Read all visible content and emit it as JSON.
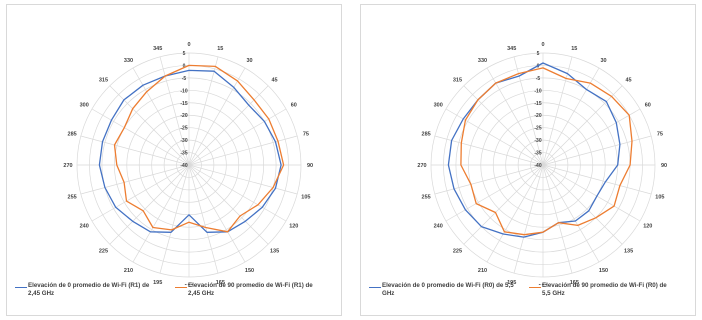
{
  "chart_data": [
    {
      "type": "polar-line",
      "r_ticks": [
        "5",
        "0",
        "-5",
        "-10",
        "-15",
        "-20",
        "-25",
        "-30",
        "-35",
        "-40"
      ],
      "r_range": [
        -40,
        5
      ],
      "angle_labels": [
        "0",
        "15",
        "30",
        "45",
        "60",
        "75",
        "90",
        "105",
        "120",
        "135",
        "150",
        "165",
        "180",
        "195",
        "210",
        "225",
        "240",
        "255",
        "270",
        "285",
        "300",
        "315",
        "330",
        "345"
      ],
      "angles": [
        0,
        15,
        30,
        45,
        60,
        75,
        90,
        105,
        120,
        135,
        150,
        165,
        180,
        195,
        210,
        225,
        240,
        255,
        270,
        285,
        300,
        315,
        330,
        345
      ],
      "grid": true,
      "legend_position": "bottom",
      "series": [
        {
          "name": "Elevación de 0 promedio de Wi-Fi (R1) de 2,45 GHz",
          "color": "#4472c4",
          "values": [
            -2,
            -1,
            -4,
            -6,
            -5,
            -4,
            -3,
            -4,
            -6,
            -8,
            -9,
            -12,
            -20,
            -12,
            -9,
            -8,
            -6,
            -5,
            -4,
            -4,
            -4,
            -3,
            -3,
            -3
          ]
        },
        {
          "name": "Elevación de 90 promedio de Wi-Fi (R1) de 2,45 GHz",
          "color": "#ed7d31",
          "values": [
            0,
            1,
            -1,
            -3,
            -3,
            -3,
            -2,
            -5,
            -8,
            -11,
            -9,
            -14,
            -17,
            -13,
            -11,
            -14,
            -11,
            -13,
            -11,
            -9,
            -10,
            -8,
            -6,
            -3
          ]
        }
      ]
    },
    {
      "type": "polar-line",
      "r_ticks": [
        "5",
        "0",
        "-5",
        "-10",
        "-15",
        "-20",
        "-25",
        "-30",
        "-35",
        "-40"
      ],
      "r_range": [
        -40,
        5
      ],
      "angle_labels": [
        "0",
        "15",
        "30",
        "45",
        "60",
        "75",
        "90",
        "105",
        "120",
        "135",
        "150",
        "165",
        "180",
        "195",
        "210",
        "225",
        "240",
        "255",
        "270",
        "285",
        "300",
        "315",
        "330",
        "345"
      ],
      "angles": [
        0,
        15,
        30,
        45,
        60,
        75,
        90,
        105,
        120,
        135,
        150,
        165,
        180,
        195,
        210,
        225,
        240,
        255,
        270,
        285,
        300,
        315,
        330,
        345
      ],
      "grid": true,
      "legend_position": "bottom",
      "series": [
        {
          "name": "Elevación de 0 promedio de Wi-Fi (R0) de 5,5 GHz",
          "color": "#4472c4",
          "values": [
            1,
            -2,
            -5,
            -4,
            -6,
            -8,
            -10,
            -14,
            -15,
            -14,
            -14,
            -16,
            -13,
            -10,
            -8,
            -5,
            -4,
            -3,
            -2,
            -2,
            -3,
            -3,
            -2,
            -3
          ]
        },
        {
          "name": "Elevación de 90 promedio de Wi-Fi (R0) de 5,5 GHz",
          "color": "#ed7d31",
          "values": [
            -1,
            -4,
            -2,
            -1,
            0,
            -3,
            -5,
            -8,
            -7,
            -10,
            -12,
            -16,
            -13,
            -11,
            -9,
            -13,
            -9,
            -10,
            -7,
            -6,
            -4,
            -3,
            -2,
            -2
          ]
        }
      ]
    }
  ]
}
